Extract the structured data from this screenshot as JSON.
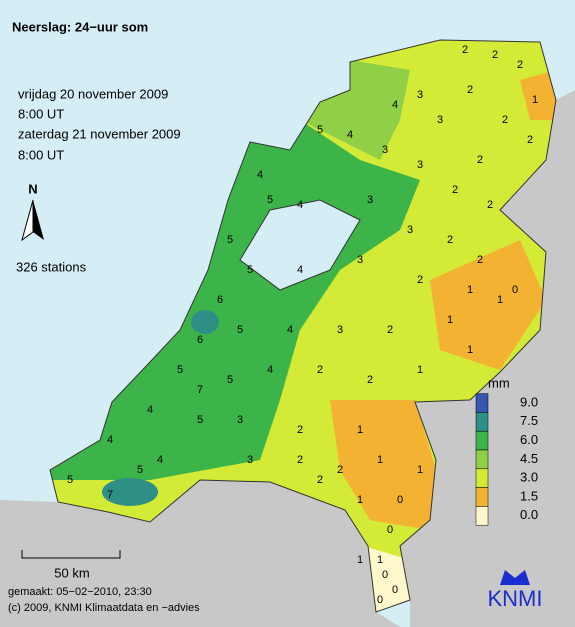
{
  "header": {
    "title": "Neerslag: 24−uur som",
    "lines": [
      "vrijdag 20 november 2009",
      "8:00 UT",
      "zaterdag 21 november 2009",
      "8:00 UT"
    ]
  },
  "north": "N",
  "station_count": "326 stations",
  "legend": {
    "title": "mm",
    "ticks": [
      {
        "value": 9,
        "label": "9.0"
      },
      {
        "value": 7.5,
        "label": "7.5"
      },
      {
        "value": 6,
        "label": "6.0"
      },
      {
        "value": 4.5,
        "label": "4.5"
      },
      {
        "value": 3,
        "label": "3.0"
      },
      {
        "value": 1.5,
        "label": "1.5"
      },
      {
        "value": 0,
        "label": "0.0"
      }
    ],
    "colors": [
      "#3656b0",
      "#2e8f86",
      "#3cb44a",
      "#8fd046",
      "#d3ea36",
      "#f3b232",
      "#fff8cc"
    ]
  },
  "scale": "50 km",
  "footer": [
    "gemaakt: 05−02−2010, 23:30",
    "(c) 2009, KNMI Klimaatdata en −advies"
  ],
  "logo": "KNMI",
  "stations": [
    2,
    2,
    2,
    2,
    3,
    4,
    3,
    2,
    2,
    2,
    5,
    4,
    3,
    3,
    2,
    2,
    1,
    4,
    5,
    4,
    3,
    3,
    2,
    2,
    5,
    5,
    4,
    3,
    2,
    1,
    1,
    6,
    6,
    5,
    4,
    3,
    2,
    1,
    0,
    5,
    7,
    5,
    4,
    2,
    2,
    1,
    1,
    4,
    5,
    3,
    2,
    1,
    4,
    4,
    2,
    2,
    1,
    0,
    1,
    5,
    7,
    5,
    3,
    2,
    1,
    0,
    1,
    0,
    0,
    0,
    1
  ]
}
